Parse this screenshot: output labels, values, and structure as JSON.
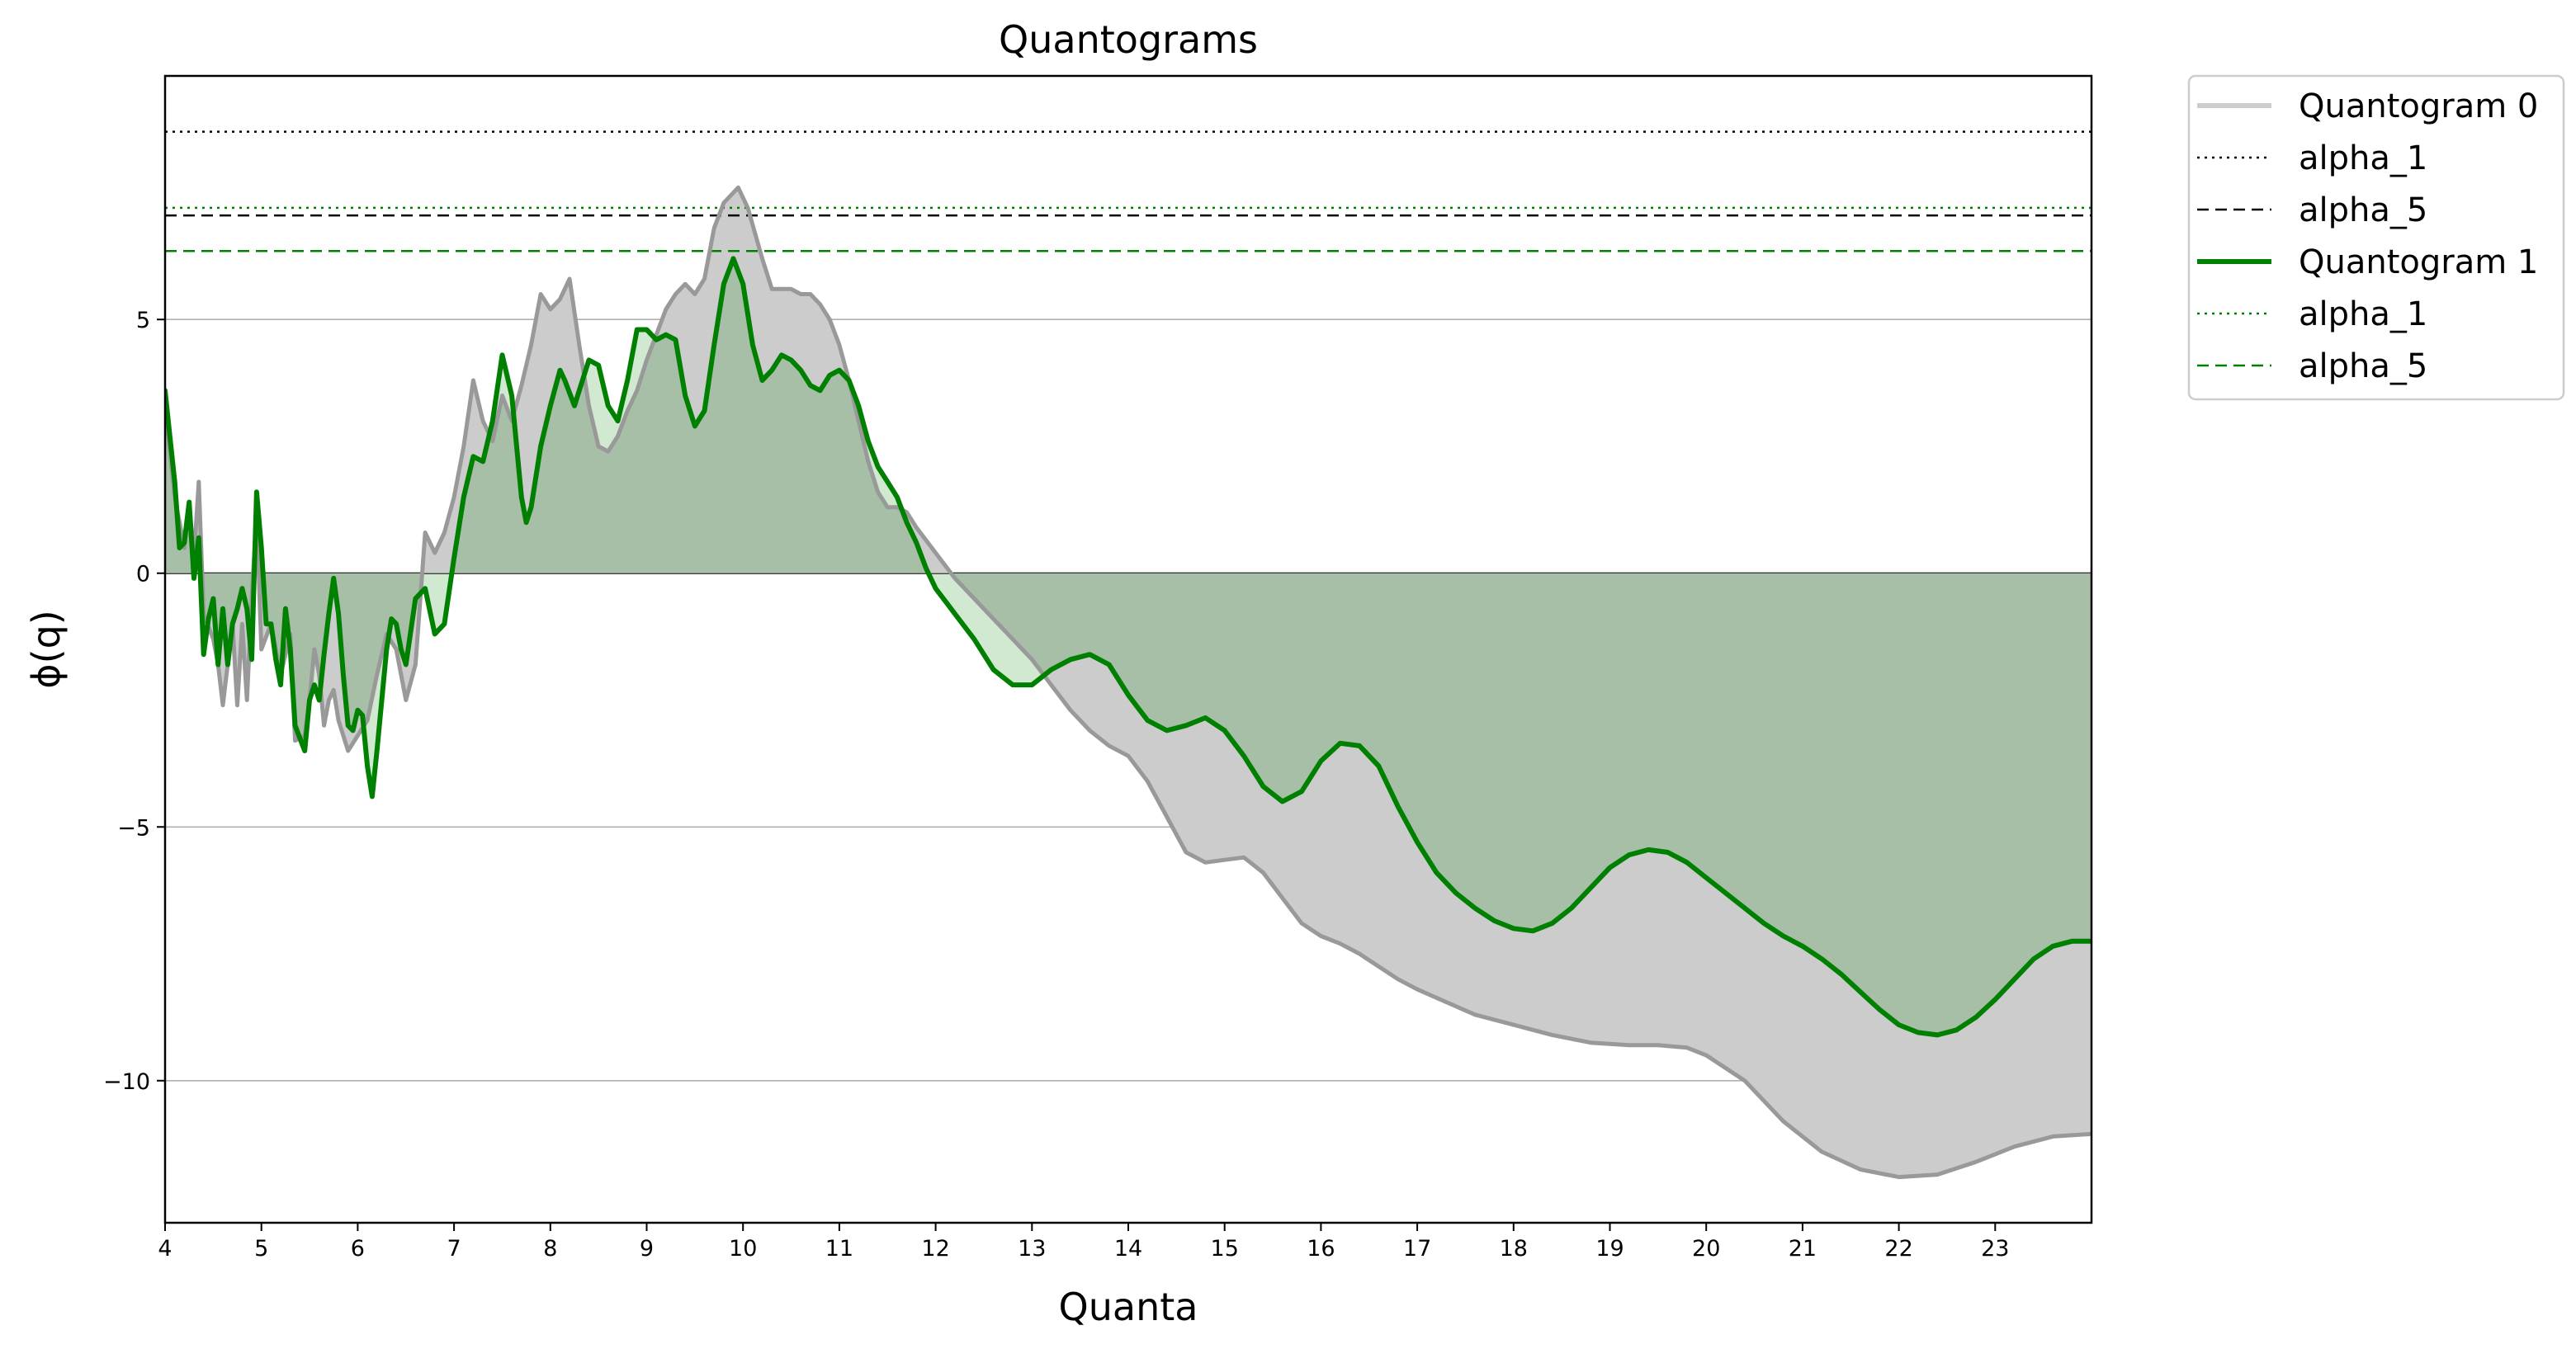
{
  "chart_data": {
    "type": "line",
    "title": "Quantograms",
    "xlabel": "Quanta",
    "ylabel": "ϕ(q)",
    "xlim": [
      4,
      24
    ],
    "ylim": [
      -12.8,
      9.8
    ],
    "xticks": [
      4,
      5,
      6,
      7,
      8,
      9,
      10,
      11,
      12,
      13,
      14,
      15,
      16,
      17,
      18,
      19,
      20,
      21,
      22,
      23
    ],
    "yticks": [
      -10,
      -5,
      0,
      5
    ],
    "ytick_labels": [
      "−10",
      "−5",
      "0",
      "5"
    ],
    "grid": "horizontal",
    "legend_position": "outside-top-right",
    "series": [
      {
        "name": "Quantogram 0",
        "color": "#999999",
        "legend_color": "#cccccc",
        "fill_color": "#cccccc",
        "points": [
          [
            4.0,
            3.3
          ],
          [
            4.1,
            1.5
          ],
          [
            4.2,
            0.5
          ],
          [
            4.25,
            1.4
          ],
          [
            4.3,
            0.3
          ],
          [
            4.35,
            1.8
          ],
          [
            4.4,
            -0.8
          ],
          [
            4.5,
            -1.3
          ],
          [
            4.55,
            -1.8
          ],
          [
            4.6,
            -2.6
          ],
          [
            4.7,
            -1.0
          ],
          [
            4.75,
            -2.6
          ],
          [
            4.8,
            -1.0
          ],
          [
            4.85,
            -2.5
          ],
          [
            4.9,
            -0.5
          ],
          [
            4.95,
            1.2
          ],
          [
            5.0,
            -1.5
          ],
          [
            5.1,
            -1.0
          ],
          [
            5.2,
            -2.0
          ],
          [
            5.3,
            -1.2
          ],
          [
            5.35,
            -3.3
          ],
          [
            5.45,
            -3.2
          ],
          [
            5.5,
            -2.5
          ],
          [
            5.55,
            -1.5
          ],
          [
            5.6,
            -2.0
          ],
          [
            5.65,
            -3.0
          ],
          [
            5.7,
            -2.5
          ],
          [
            5.75,
            -2.3
          ],
          [
            5.8,
            -2.9
          ],
          [
            5.9,
            -3.5
          ],
          [
            6.0,
            -3.2
          ],
          [
            6.1,
            -2.9
          ],
          [
            6.2,
            -2.0
          ],
          [
            6.3,
            -1.2
          ],
          [
            6.4,
            -1.5
          ],
          [
            6.5,
            -2.5
          ],
          [
            6.6,
            -1.8
          ],
          [
            6.7,
            0.8
          ],
          [
            6.8,
            0.4
          ],
          [
            6.9,
            0.8
          ],
          [
            7.0,
            1.5
          ],
          [
            7.1,
            2.5
          ],
          [
            7.2,
            3.8
          ],
          [
            7.3,
            3.0
          ],
          [
            7.4,
            2.6
          ],
          [
            7.5,
            3.5
          ],
          [
            7.6,
            3.0
          ],
          [
            7.7,
            3.7
          ],
          [
            7.8,
            4.5
          ],
          [
            7.9,
            5.5
          ],
          [
            8.0,
            5.2
          ],
          [
            8.1,
            5.4
          ],
          [
            8.2,
            5.8
          ],
          [
            8.3,
            4.5
          ],
          [
            8.4,
            3.3
          ],
          [
            8.5,
            2.5
          ],
          [
            8.6,
            2.4
          ],
          [
            8.7,
            2.7
          ],
          [
            8.8,
            3.2
          ],
          [
            8.9,
            3.6
          ],
          [
            9.0,
            4.2
          ],
          [
            9.1,
            4.7
          ],
          [
            9.2,
            5.2
          ],
          [
            9.3,
            5.5
          ],
          [
            9.4,
            5.7
          ],
          [
            9.5,
            5.5
          ],
          [
            9.6,
            5.8
          ],
          [
            9.7,
            6.8
          ],
          [
            9.8,
            7.3
          ],
          [
            9.95,
            7.6
          ],
          [
            10.05,
            7.2
          ],
          [
            10.2,
            6.2
          ],
          [
            10.3,
            5.6
          ],
          [
            10.4,
            5.6
          ],
          [
            10.5,
            5.6
          ],
          [
            10.6,
            5.5
          ],
          [
            10.7,
            5.5
          ],
          [
            10.8,
            5.3
          ],
          [
            10.9,
            5.0
          ],
          [
            11.0,
            4.5
          ],
          [
            11.1,
            3.8
          ],
          [
            11.2,
            3.0
          ],
          [
            11.3,
            2.2
          ],
          [
            11.4,
            1.6
          ],
          [
            11.5,
            1.3
          ],
          [
            11.6,
            1.3
          ],
          [
            11.7,
            1.2
          ],
          [
            11.8,
            0.9
          ],
          [
            12.0,
            0.4
          ],
          [
            12.2,
            -0.1
          ],
          [
            12.4,
            -0.5
          ],
          [
            12.6,
            -0.9
          ],
          [
            12.8,
            -1.3
          ],
          [
            13.0,
            -1.7
          ],
          [
            13.2,
            -2.2
          ],
          [
            13.4,
            -2.7
          ],
          [
            13.6,
            -3.1
          ],
          [
            13.8,
            -3.4
          ],
          [
            14.0,
            -3.6
          ],
          [
            14.2,
            -4.1
          ],
          [
            14.4,
            -4.8
          ],
          [
            14.6,
            -5.5
          ],
          [
            14.8,
            -5.7
          ],
          [
            15.0,
            -5.65
          ],
          [
            15.2,
            -5.6
          ],
          [
            15.4,
            -5.9
          ],
          [
            15.6,
            -6.4
          ],
          [
            15.8,
            -6.9
          ],
          [
            16.0,
            -7.15
          ],
          [
            16.2,
            -7.3
          ],
          [
            16.4,
            -7.5
          ],
          [
            16.6,
            -7.75
          ],
          [
            16.8,
            -8.0
          ],
          [
            17.0,
            -8.2
          ],
          [
            17.3,
            -8.45
          ],
          [
            17.6,
            -8.7
          ],
          [
            18.0,
            -8.9
          ],
          [
            18.4,
            -9.1
          ],
          [
            18.8,
            -9.25
          ],
          [
            19.2,
            -9.3
          ],
          [
            19.5,
            -9.3
          ],
          [
            19.8,
            -9.35
          ],
          [
            20.0,
            -9.5
          ],
          [
            20.4,
            -10.0
          ],
          [
            20.8,
            -10.8
          ],
          [
            21.2,
            -11.4
          ],
          [
            21.6,
            -11.75
          ],
          [
            22.0,
            -11.9
          ],
          [
            22.4,
            -11.85
          ],
          [
            22.8,
            -11.6
          ],
          [
            23.2,
            -11.3
          ],
          [
            23.6,
            -11.1
          ],
          [
            24.0,
            -11.05
          ]
        ]
      },
      {
        "name": "Quantogram 1",
        "color": "#008000",
        "legend_color": "#008000",
        "fill_color": "#008000",
        "points": [
          [
            4.0,
            3.6
          ],
          [
            4.05,
            2.7
          ],
          [
            4.1,
            1.8
          ],
          [
            4.15,
            0.5
          ],
          [
            4.2,
            0.6
          ],
          [
            4.25,
            1.4
          ],
          [
            4.3,
            -0.1
          ],
          [
            4.35,
            0.7
          ],
          [
            4.4,
            -1.6
          ],
          [
            4.45,
            -0.9
          ],
          [
            4.5,
            -0.5
          ],
          [
            4.55,
            -1.8
          ],
          [
            4.6,
            -0.7
          ],
          [
            4.65,
            -1.8
          ],
          [
            4.7,
            -1.0
          ],
          [
            4.75,
            -0.7
          ],
          [
            4.8,
            -0.3
          ],
          [
            4.85,
            -0.7
          ],
          [
            4.9,
            -1.7
          ],
          [
            4.95,
            1.6
          ],
          [
            5.0,
            0.5
          ],
          [
            5.05,
            -1.0
          ],
          [
            5.1,
            -1.0
          ],
          [
            5.15,
            -1.7
          ],
          [
            5.2,
            -2.2
          ],
          [
            5.25,
            -0.7
          ],
          [
            5.3,
            -1.5
          ],
          [
            5.35,
            -3.0
          ],
          [
            5.45,
            -3.5
          ],
          [
            5.5,
            -2.5
          ],
          [
            5.55,
            -2.2
          ],
          [
            5.6,
            -2.5
          ],
          [
            5.65,
            -1.6
          ],
          [
            5.7,
            -0.8
          ],
          [
            5.75,
            -0.1
          ],
          [
            5.8,
            -0.8
          ],
          [
            5.85,
            -2.0
          ],
          [
            5.9,
            -3.0
          ],
          [
            5.95,
            -3.1
          ],
          [
            6.0,
            -2.7
          ],
          [
            6.05,
            -2.8
          ],
          [
            6.1,
            -3.8
          ],
          [
            6.15,
            -4.4
          ],
          [
            6.2,
            -3.5
          ],
          [
            6.3,
            -1.5
          ],
          [
            6.35,
            -0.9
          ],
          [
            6.4,
            -1.0
          ],
          [
            6.45,
            -1.5
          ],
          [
            6.5,
            -1.8
          ],
          [
            6.6,
            -0.5
          ],
          [
            6.7,
            -0.3
          ],
          [
            6.8,
            -1.2
          ],
          [
            6.9,
            -1.0
          ],
          [
            7.0,
            0.3
          ],
          [
            7.1,
            1.5
          ],
          [
            7.2,
            2.3
          ],
          [
            7.3,
            2.2
          ],
          [
            7.4,
            3.0
          ],
          [
            7.5,
            4.3
          ],
          [
            7.6,
            3.5
          ],
          [
            7.7,
            1.5
          ],
          [
            7.75,
            1.0
          ],
          [
            7.8,
            1.3
          ],
          [
            7.9,
            2.5
          ],
          [
            8.0,
            3.3
          ],
          [
            8.1,
            4.0
          ],
          [
            8.15,
            3.8
          ],
          [
            8.25,
            3.3
          ],
          [
            8.3,
            3.6
          ],
          [
            8.4,
            4.2
          ],
          [
            8.5,
            4.1
          ],
          [
            8.6,
            3.3
          ],
          [
            8.7,
            3.0
          ],
          [
            8.8,
            3.8
          ],
          [
            8.9,
            4.8
          ],
          [
            9.0,
            4.8
          ],
          [
            9.1,
            4.6
          ],
          [
            9.2,
            4.7
          ],
          [
            9.3,
            4.6
          ],
          [
            9.4,
            3.5
          ],
          [
            9.5,
            2.9
          ],
          [
            9.6,
            3.2
          ],
          [
            9.7,
            4.5
          ],
          [
            9.8,
            5.7
          ],
          [
            9.9,
            6.2
          ],
          [
            10.0,
            5.7
          ],
          [
            10.1,
            4.5
          ],
          [
            10.2,
            3.8
          ],
          [
            10.3,
            4.0
          ],
          [
            10.4,
            4.3
          ],
          [
            10.5,
            4.2
          ],
          [
            10.6,
            4.0
          ],
          [
            10.7,
            3.7
          ],
          [
            10.8,
            3.6
          ],
          [
            10.9,
            3.9
          ],
          [
            11.0,
            4.0
          ],
          [
            11.1,
            3.8
          ],
          [
            11.2,
            3.3
          ],
          [
            11.3,
            2.6
          ],
          [
            11.4,
            2.1
          ],
          [
            11.5,
            1.8
          ],
          [
            11.6,
            1.5
          ],
          [
            11.7,
            1.0
          ],
          [
            11.8,
            0.6
          ],
          [
            11.9,
            0.1
          ],
          [
            12.0,
            -0.3
          ],
          [
            12.2,
            -0.8
          ],
          [
            12.4,
            -1.3
          ],
          [
            12.6,
            -1.9
          ],
          [
            12.8,
            -2.2
          ],
          [
            13.0,
            -2.2
          ],
          [
            13.2,
            -1.9
          ],
          [
            13.4,
            -1.7
          ],
          [
            13.6,
            -1.6
          ],
          [
            13.8,
            -1.8
          ],
          [
            14.0,
            -2.4
          ],
          [
            14.2,
            -2.9
          ],
          [
            14.4,
            -3.1
          ],
          [
            14.6,
            -3.0
          ],
          [
            14.8,
            -2.85
          ],
          [
            15.0,
            -3.1
          ],
          [
            15.2,
            -3.6
          ],
          [
            15.4,
            -4.2
          ],
          [
            15.6,
            -4.5
          ],
          [
            15.8,
            -4.3
          ],
          [
            16.0,
            -3.7
          ],
          [
            16.2,
            -3.35
          ],
          [
            16.4,
            -3.4
          ],
          [
            16.6,
            -3.8
          ],
          [
            16.8,
            -4.6
          ],
          [
            17.0,
            -5.3
          ],
          [
            17.2,
            -5.9
          ],
          [
            17.4,
            -6.3
          ],
          [
            17.6,
            -6.6
          ],
          [
            17.8,
            -6.85
          ],
          [
            18.0,
            -7.0
          ],
          [
            18.2,
            -7.05
          ],
          [
            18.4,
            -6.9
          ],
          [
            18.6,
            -6.6
          ],
          [
            18.8,
            -6.2
          ],
          [
            19.0,
            -5.8
          ],
          [
            19.2,
            -5.55
          ],
          [
            19.4,
            -5.45
          ],
          [
            19.6,
            -5.5
          ],
          [
            19.8,
            -5.7
          ],
          [
            20.0,
            -6.0
          ],
          [
            20.2,
            -6.3
          ],
          [
            20.4,
            -6.6
          ],
          [
            20.6,
            -6.9
          ],
          [
            20.8,
            -7.15
          ],
          [
            21.0,
            -7.35
          ],
          [
            21.2,
            -7.6
          ],
          [
            21.4,
            -7.9
          ],
          [
            21.6,
            -8.25
          ],
          [
            21.8,
            -8.6
          ],
          [
            22.0,
            -8.9
          ],
          [
            22.2,
            -9.05
          ],
          [
            22.4,
            -9.1
          ],
          [
            22.6,
            -9.0
          ],
          [
            22.8,
            -8.75
          ],
          [
            23.0,
            -8.4
          ],
          [
            23.2,
            -8.0
          ],
          [
            23.4,
            -7.6
          ],
          [
            23.6,
            -7.35
          ],
          [
            23.8,
            -7.25
          ],
          [
            24.0,
            -7.25
          ]
        ]
      }
    ],
    "reference_lines": [
      {
        "name": "alpha_1",
        "y": 8.7,
        "color": "#000000",
        "style": "dotted"
      },
      {
        "name": "alpha_5",
        "y": 7.05,
        "color": "#000000",
        "style": "dashed"
      },
      {
        "name": "alpha_1",
        "y": 7.2,
        "color": "#008000",
        "style": "dotted"
      },
      {
        "name": "alpha_5",
        "y": 6.35,
        "color": "#008000",
        "style": "dashed"
      }
    ],
    "legend": [
      {
        "label": "Quantogram 0",
        "color": "#cccccc",
        "style": "thick"
      },
      {
        "label": "alpha_1",
        "color": "#000000",
        "style": "dotted"
      },
      {
        "label": "alpha_5",
        "color": "#000000",
        "style": "dashed"
      },
      {
        "label": "Quantogram 1",
        "color": "#008000",
        "style": "thick"
      },
      {
        "label": "alpha_1",
        "color": "#008000",
        "style": "dotted"
      },
      {
        "label": "alpha_5",
        "color": "#008000",
        "style": "dashed"
      }
    ]
  }
}
